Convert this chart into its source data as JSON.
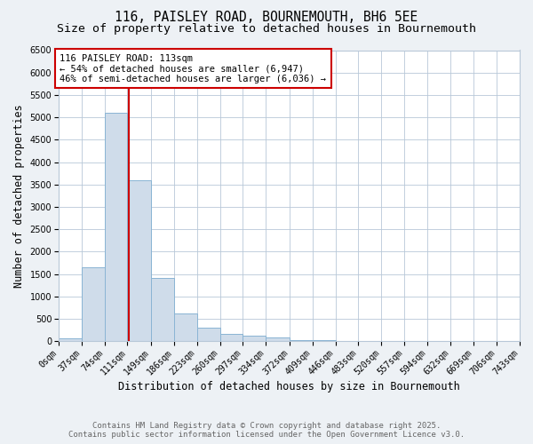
{
  "title_line1": "116, PAISLEY ROAD, BOURNEMOUTH, BH6 5EE",
  "title_line2": "Size of property relative to detached houses in Bournemouth",
  "xlabel": "Distribution of detached houses by size in Bournemouth",
  "ylabel": "Number of detached properties",
  "bin_edges": [
    0,
    37,
    74,
    111,
    149,
    186,
    223,
    260,
    297,
    334,
    372,
    409,
    446,
    483,
    520,
    557,
    594,
    632,
    669,
    706,
    743
  ],
  "bar_heights": [
    75,
    1650,
    5100,
    3600,
    1420,
    620,
    310,
    160,
    130,
    90,
    35,
    25,
    10,
    5,
    2,
    1,
    0.5,
    0.2,
    0.1,
    0
  ],
  "bar_color": "#cfdcea",
  "bar_edge_color": "#8ab4d4",
  "vline_x": 113,
  "vline_color": "#cc0000",
  "ylim": [
    0,
    6500
  ],
  "yticks": [
    0,
    500,
    1000,
    1500,
    2000,
    2500,
    3000,
    3500,
    4000,
    4500,
    5000,
    5500,
    6000,
    6500
  ],
  "annotation_text": "116 PAISLEY ROAD: 113sqm\n← 54% of detached houses are smaller (6,947)\n46% of semi-detached houses are larger (6,036) →",
  "annotation_box_color": "#ffffff",
  "annotation_border_color": "#cc0000",
  "footer_line1": "Contains HM Land Registry data © Crown copyright and database right 2025.",
  "footer_line2": "Contains public sector information licensed under the Open Government Licence v3.0.",
  "bg_color": "#edf1f5",
  "plot_bg_color": "#ffffff",
  "grid_color": "#b8c8d8",
  "title_fontsize": 10.5,
  "subtitle_fontsize": 9.5,
  "tick_label_fontsize": 7,
  "axis_label_fontsize": 8.5,
  "annotation_fontsize": 7.5,
  "footer_fontsize": 6.5
}
